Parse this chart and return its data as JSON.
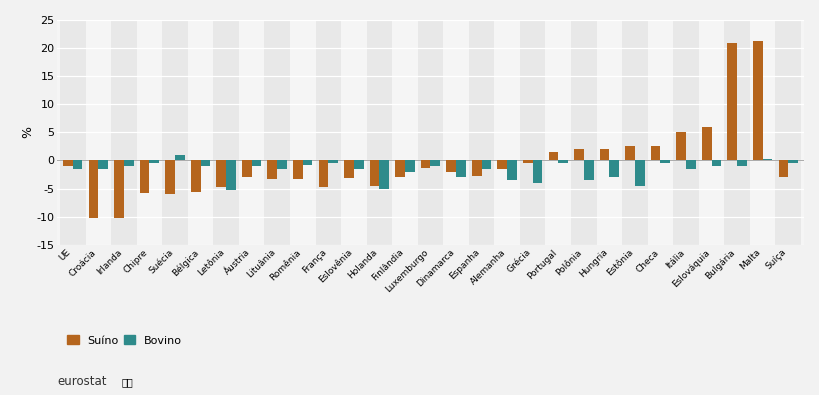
{
  "countries": [
    "UE",
    "Croácia",
    "Irlanda",
    "Chipre",
    "Suécia",
    "Bélgica",
    "Letônia",
    "Áustria",
    "Lituânia",
    "Romênia",
    "França",
    "Eslovênia",
    "Holanda",
    "Finlândia",
    "Luxemburgo",
    "Dinamarca",
    "Espanha",
    "Alemanha",
    "Grécia",
    "Portugal",
    "Polônia",
    "Hungria",
    "Estônia",
    "Checa",
    "Itália",
    "Eslováquia",
    "Bulgária",
    "Malta",
    "Suíça"
  ],
  "suino": [
    -1.0,
    -10.3,
    -10.3,
    -5.8,
    -6.0,
    -5.6,
    -4.7,
    -3.0,
    -3.3,
    -3.3,
    -4.8,
    -3.2,
    -4.5,
    -3.0,
    -1.3,
    -2.0,
    -2.8,
    -1.5,
    -0.5,
    1.5,
    2.0,
    2.0,
    2.5,
    2.5,
    5.0,
    6.0,
    20.8,
    21.2,
    -3.0
  ],
  "bovino": [
    -1.5,
    -1.5,
    -1.0,
    -0.5,
    1.0,
    -1.0,
    -5.2,
    -1.0,
    -1.5,
    -0.8,
    -0.5,
    -1.5,
    -5.0,
    -2.0,
    -1.0,
    -3.0,
    -1.5,
    -3.5,
    -4.0,
    -0.5,
    -3.5,
    -3.0,
    -4.5,
    -0.5,
    -1.5,
    -1.0,
    -1.0,
    0.2,
    -0.5
  ],
  "suino_color": "#b5651d",
  "bovino_color": "#2e8b8b",
  "ylim_min": -15,
  "ylim_max": 25,
  "yticks": [
    -15,
    -10,
    -5,
    0,
    5,
    10,
    15,
    20,
    25
  ],
  "ylabel": "%",
  "fig_bg": "#f2f2f2",
  "plot_bg": "#f5f5f5",
  "col_bg_dark": "#e8e8e8",
  "grid_color": "#ffffff",
  "bar_width": 0.38,
  "xtick_fontsize": 6.5,
  "ytick_fontsize": 8.0,
  "ylabel_fontsize": 9,
  "legend_fontsize": 8,
  "eurostat_fontsize": 8.5
}
